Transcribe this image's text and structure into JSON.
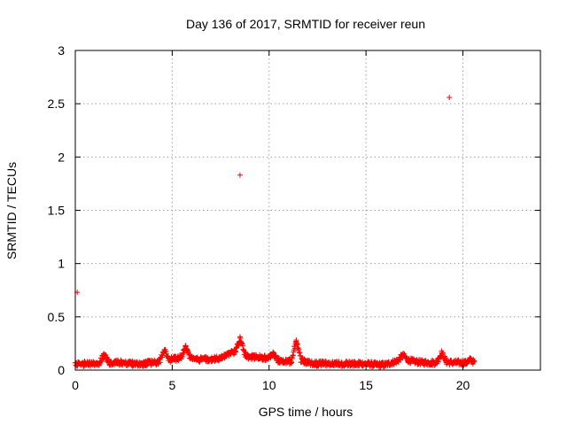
{
  "chart_data": {
    "type": "scatter",
    "title": "Day 136 of 2017, SRMTID for receiver reun",
    "xlabel": "GPS time / hours",
    "ylabel": "SRMTID / TECUs",
    "xlim": [
      0,
      24
    ],
    "ylim": [
      0,
      3
    ],
    "x_ticks": [
      0,
      5,
      10,
      15,
      20
    ],
    "x_tick_labels": [
      "0",
      "5",
      "10",
      "15",
      "20"
    ],
    "y_ticks": [
      0,
      0.5,
      1,
      1.5,
      2,
      2.5,
      3
    ],
    "y_tick_labels": [
      "0",
      "0.5",
      "1",
      "1.5",
      "2",
      "2.5",
      "3"
    ],
    "grid": true,
    "marker": "+",
    "series": [
      {
        "name": "SRMTID",
        "color": "#ff0000",
        "outliers": [
          {
            "x": 0.1,
            "y": 0.73
          },
          {
            "x": 8.5,
            "y": 1.83
          },
          {
            "x": 19.3,
            "y": 2.56
          }
        ],
        "trend": [
          [
            0.0,
            0.05
          ],
          [
            0.5,
            0.06
          ],
          [
            1.0,
            0.06
          ],
          [
            1.5,
            0.07
          ],
          [
            2.0,
            0.07
          ],
          [
            2.5,
            0.07
          ],
          [
            3.0,
            0.06
          ],
          [
            3.5,
            0.06
          ],
          [
            4.0,
            0.07
          ],
          [
            4.5,
            0.08
          ],
          [
            5.0,
            0.1
          ],
          [
            5.5,
            0.12
          ],
          [
            6.0,
            0.11
          ],
          [
            6.5,
            0.1
          ],
          [
            7.0,
            0.1
          ],
          [
            7.5,
            0.11
          ],
          [
            8.0,
            0.16
          ],
          [
            8.5,
            0.18
          ],
          [
            9.0,
            0.12
          ],
          [
            9.5,
            0.12
          ],
          [
            10.0,
            0.11
          ],
          [
            10.5,
            0.09
          ],
          [
            11.0,
            0.08
          ],
          [
            11.5,
            0.1
          ],
          [
            12.0,
            0.07
          ],
          [
            12.5,
            0.06
          ],
          [
            13.0,
            0.06
          ],
          [
            13.5,
            0.06
          ],
          [
            14.0,
            0.06
          ],
          [
            14.5,
            0.06
          ],
          [
            15.0,
            0.06
          ],
          [
            15.5,
            0.05
          ],
          [
            16.0,
            0.05
          ],
          [
            16.5,
            0.08
          ],
          [
            17.0,
            0.1
          ],
          [
            17.5,
            0.08
          ],
          [
            18.0,
            0.07
          ],
          [
            18.5,
            0.07
          ],
          [
            19.0,
            0.08
          ],
          [
            19.5,
            0.07
          ],
          [
            20.0,
            0.07
          ],
          [
            20.6,
            0.06
          ]
        ],
        "spikes": [
          {
            "x": 1.5,
            "y": 0.15
          },
          {
            "x": 4.6,
            "y": 0.19
          },
          {
            "x": 5.7,
            "y": 0.22
          },
          {
            "x": 8.5,
            "y": 0.3
          },
          {
            "x": 10.2,
            "y": 0.15
          },
          {
            "x": 11.4,
            "y": 0.27
          },
          {
            "x": 16.9,
            "y": 0.14
          },
          {
            "x": 18.9,
            "y": 0.16
          },
          {
            "x": 20.4,
            "y": 0.1
          }
        ],
        "x_range": [
          0,
          20.6
        ]
      }
    ]
  }
}
